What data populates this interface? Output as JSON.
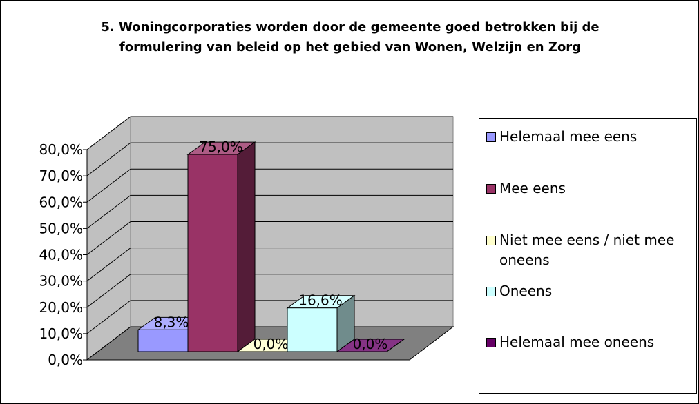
{
  "chart_data": {
    "type": "bar3d",
    "title": "5. Woningcorporaties worden door de gemeente goed betrokken bij de formulering van beleid op het gebied van Wonen, Welzijn en Zorg",
    "series": [
      {
        "name": "Helemaal mee eens",
        "color": "#9999ff",
        "values": [
          8.3
        ],
        "value_labels": [
          "8,3%"
        ]
      },
      {
        "name": "Mee eens",
        "color": "#993366",
        "values": [
          75.0
        ],
        "value_labels": [
          "75,0%"
        ]
      },
      {
        "name": "Niet mee eens / niet mee oneens",
        "color": "#ffffcc",
        "values": [
          0.0
        ],
        "value_labels": [
          "0,0%"
        ]
      },
      {
        "name": "Oneens",
        "color": "#ccffff",
        "values": [
          16.6
        ],
        "value_labels": [
          "16,6%"
        ]
      },
      {
        "name": "Helemaal mee oneens",
        "color": "#660066",
        "values": [
          0.0
        ],
        "value_labels": [
          "0,0%"
        ]
      }
    ],
    "ylim": [
      0,
      80
    ],
    "yticks": [
      {
        "value": 0,
        "label": "0,0%"
      },
      {
        "value": 10,
        "label": "10,0%"
      },
      {
        "value": 20,
        "label": "20,0%"
      },
      {
        "value": 30,
        "label": "30,0%"
      },
      {
        "value": 40,
        "label": "40,0%"
      },
      {
        "value": 50,
        "label": "50,0%"
      },
      {
        "value": 60,
        "label": "60,0%"
      },
      {
        "value": 70,
        "label": "70,0%"
      },
      {
        "value": 80,
        "label": "80,0%"
      }
    ],
    "grid": true,
    "legend": "right"
  }
}
